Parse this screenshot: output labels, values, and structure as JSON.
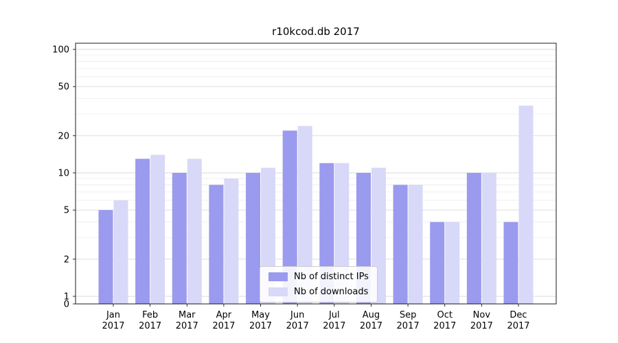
{
  "chart_data": {
    "type": "bar",
    "title": "r10kcod.db 2017",
    "categories": [
      "Jan",
      "Feb",
      "Mar",
      "Apr",
      "May",
      "Jun",
      "Jul",
      "Aug",
      "Sep",
      "Oct",
      "Nov",
      "Dec"
    ],
    "x_year": "2017",
    "series": [
      {
        "name": "Nb of distinct IPs",
        "color": "#9a9aee",
        "values": [
          5,
          13,
          10,
          8,
          10,
          22,
          12,
          10,
          8,
          4,
          10,
          4
        ]
      },
      {
        "name": "Nb of downloads",
        "color": "#d8d8f8",
        "values": [
          6,
          14,
          13,
          9,
          11,
          24,
          12,
          11,
          8,
          4,
          10,
          35
        ]
      }
    ],
    "yscale": "symlog",
    "y_ticks": [
      0,
      1,
      2,
      5,
      10,
      20,
      50,
      100
    ],
    "y_minor_ticks": [
      3,
      4,
      6,
      7,
      8,
      9,
      30,
      40,
      60,
      70,
      80,
      90
    ],
    "ylim": [
      0,
      112
    ],
    "xlabel": "",
    "ylabel": "",
    "grid": true,
    "legend_position": "lower center"
  }
}
